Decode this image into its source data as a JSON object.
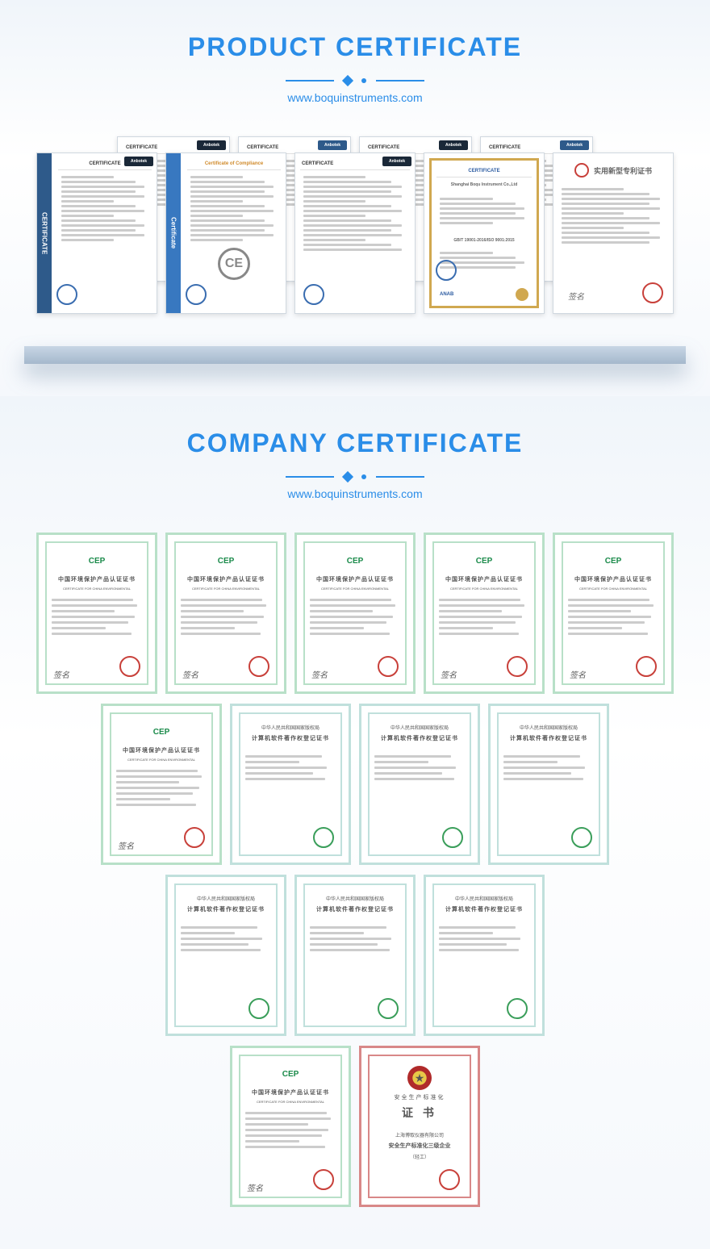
{
  "colors": {
    "title": "#2a8de8",
    "website": "#2a8de8",
    "bgGrad1": "#f0f5fa",
    "ark_dark": "#1a2838",
    "ark_blue": "#2e5a8a",
    "ce_spine": "#2e5a8a",
    "ce_comp_spine": "#3878c0",
    "cep_green": "#1a8a4a",
    "cep_border_green": "#b8e0c8",
    "sw_teal": "#4aa8a0",
    "sw_border": "#c0e0dc",
    "safety_red": "#b02a2a",
    "safety_border": "#d88888",
    "patent_accent": "#c8403a",
    "gray_line": "#cccccc"
  },
  "section1": {
    "title": "PRODUCT CERTIFICATE",
    "website": "www.boquinstruments.com",
    "back_certs": [
      {
        "head": "CERTIFICATE",
        "badge": "Anbotek",
        "bg": "#1a2838"
      },
      {
        "head": "CERTIFICATE",
        "badge": "Anbotek",
        "bg": "#2e5a8a"
      },
      {
        "head": "CERTIFICATE",
        "badge": "Anbotek",
        "bg": "#1a2838"
      },
      {
        "head": "CERTIFICATE",
        "badge": "Anbotek",
        "bg": "#2e5a8a"
      }
    ],
    "front_certs": [
      {
        "type": "ce",
        "head": "CERTIFICATE",
        "spine": "CERTIFICATE",
        "spine_bg": "#2e5a8a",
        "badge": "Anbotek",
        "badge_bg": "#1a2838",
        "stamp": "blue"
      },
      {
        "type": "ce_comp",
        "head": "Certificate of Compliance",
        "spine": "Certificate",
        "spine_bg": "#3878c0",
        "stamp": "blue"
      },
      {
        "type": "ark",
        "head": "CERTIFICATE",
        "badge": "Anbotek",
        "badge_bg": "#1a2838",
        "stamp": "blue"
      },
      {
        "type": "iso",
        "head": "CERTIFICATE",
        "org": "Shanghai Boqu Instrument Co.,Ltd",
        "std": "GB/T 19001-2016/ISO 9001:2015",
        "foot": "ANAB",
        "stamp": "blue"
      },
      {
        "type": "patent",
        "head": "实用新型专利证书",
        "stamp": "red",
        "sig": "签名"
      }
    ]
  },
  "section2": {
    "title": "COMPANY CERTIFICATE",
    "website": "www.boquinstruments.com",
    "rows": [
      [
        {
          "style": "cep",
          "logo": "CEP",
          "title": "中国环境保护产品认证证书",
          "stamp": "red"
        },
        {
          "style": "cep",
          "logo": "CEP",
          "title": "中国环境保护产品认证证书",
          "stamp": "red"
        },
        {
          "style": "cep",
          "logo": "CEP",
          "title": "中国环境保护产品认证证书",
          "stamp": "red"
        },
        {
          "style": "cep",
          "logo": "CEP",
          "title": "中国环境保护产品认证证书",
          "stamp": "red"
        },
        {
          "style": "cep",
          "logo": "CEP",
          "title": "中国环境保护产品认证证书",
          "stamp": "red"
        }
      ],
      [
        {
          "style": "cep",
          "logo": "CEP",
          "title": "中国环境保护产品认证证书",
          "stamp": "red"
        },
        {
          "style": "sw",
          "sup": "中华人民共和国国家版权局",
          "title": "计算机软件著作权登记证书",
          "stamp": "green"
        },
        {
          "style": "sw",
          "sup": "中华人民共和国国家版权局",
          "title": "计算机软件著作权登记证书",
          "stamp": "green"
        },
        {
          "style": "sw",
          "sup": "中华人民共和国国家版权局",
          "title": "计算机软件著作权登记证书",
          "stamp": "green"
        }
      ],
      [
        {
          "style": "sw",
          "sup": "中华人民共和国国家版权局",
          "title": "计算机软件著作权登记证书",
          "stamp": "green"
        },
        {
          "style": "sw",
          "sup": "中华人民共和国国家版权局",
          "title": "计算机软件著作权登记证书",
          "stamp": "green"
        },
        {
          "style": "sw",
          "sup": "中华人民共和国国家版权局",
          "title": "计算机软件著作权登记证书",
          "stamp": "green"
        }
      ],
      [
        {
          "style": "cep",
          "logo": "CEP",
          "title": "中国环境保护产品认证证书",
          "stamp": "red"
        },
        {
          "style": "safety",
          "sup": "安全生产标准化",
          "title": "证 书",
          "line1": "上海博取仪器有限公司",
          "line2": "安全生产标准化三级企业",
          "line3": "（轻工）",
          "stamp": "red"
        }
      ]
    ]
  }
}
